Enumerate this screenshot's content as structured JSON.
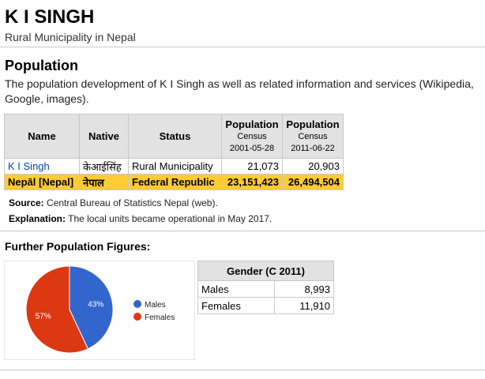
{
  "header": {
    "title": "K I SINGH",
    "subtitle": "Rural Municipality in Nepal"
  },
  "population": {
    "heading": "Population",
    "intro": "The population development of K I Singh as well as related information and services (Wikipedia, Google, images).",
    "table": {
      "headers": {
        "name": "Name",
        "native": "Native",
        "status": "Status",
        "pop1_label": "Population",
        "pop1_sub1": "Census",
        "pop1_sub2": "2001-05-28",
        "pop2_label": "Population",
        "pop2_sub1": "Census",
        "pop2_sub2": "2011-06-22"
      },
      "rows": [
        {
          "name": "K I Singh",
          "native": "केआईसिंह",
          "status": "Rural Municipality",
          "pop2001": "21,073",
          "pop2011": "20,903"
        },
        {
          "name": "Nepāl [Nepal]",
          "native": "नेपाल",
          "status": "Federal Republic",
          "pop2001": "23,151,423",
          "pop2011": "26,494,504"
        }
      ]
    },
    "source_label": "Source:",
    "source_text": " Central Bureau of Statistics Nepal (web).",
    "explanation_label": "Explanation:",
    "explanation_text": " The local units became operational in May 2017."
  },
  "further": {
    "heading": "Further Population Figures:"
  },
  "gender_table": {
    "header": "Gender (C 2011)",
    "rows": [
      {
        "label": "Males",
        "value": "8,993"
      },
      {
        "label": "Females",
        "value": "11,910"
      }
    ]
  },
  "chart_data": {
    "type": "pie",
    "labels": [
      "Males",
      "Females"
    ],
    "values": [
      8993,
      11910
    ],
    "slice_labels": [
      "43%",
      "57%"
    ],
    "colors": [
      "#3366cc",
      "#dc3912"
    ],
    "legend_position": "right"
  },
  "colors": {
    "link": "#0645ad",
    "nepal_row": "#ffcc33",
    "header_bg": "#e2e2e2"
  }
}
